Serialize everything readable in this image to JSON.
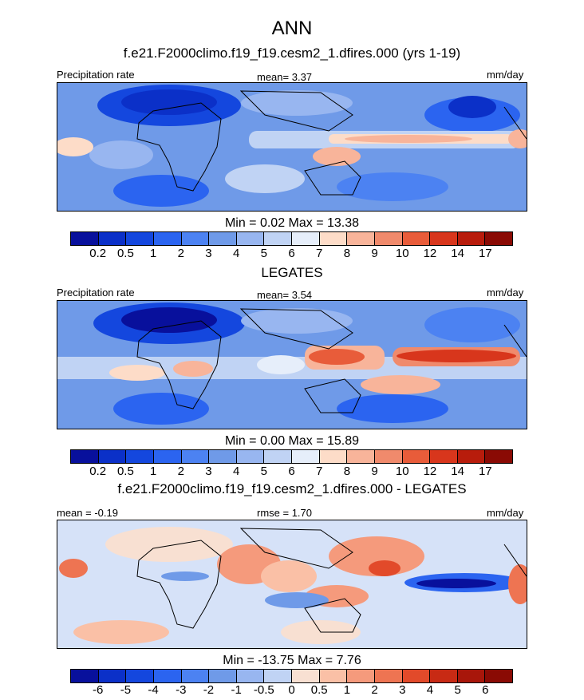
{
  "figure": {
    "title": "ANN",
    "case_title": "f.e21.F2000climo.f19_f19.cesm2_1.dfires.000 (yrs 1-19)",
    "obs_title": "LEGATES",
    "diff_title": "f.e21.F2000climo.f19_f19.cesm2_1.dfires.000 - LEGATES"
  },
  "panels": [
    {
      "left_label": "Precipitation rate",
      "center_label": "mean=   3.37",
      "right_label": "mm/day",
      "minmax": "Min =   0.02 Max =  13.38",
      "colorbar": "abs"
    },
    {
      "left_label": "Precipitation rate",
      "center_label": "mean=   3.54",
      "right_label": "mm/day",
      "minmax": "Min =   0.00 Max =  15.89",
      "colorbar": "abs"
    },
    {
      "left_label": "mean =  -0.19",
      "center_label": "rmse =   1.70",
      "right_label": "mm/day",
      "minmax": "Min = -13.75 Max =   7.76",
      "colorbar": "diff"
    }
  ],
  "colorbars": {
    "abs": {
      "levels": [
        "0.2",
        "0.5",
        "1",
        "2",
        "3",
        "4",
        "5",
        "6",
        "7",
        "8",
        "9",
        "10",
        "12",
        "14",
        "17"
      ],
      "colors": [
        "#08109c",
        "#0b30c8",
        "#1447de",
        "#2b64f0",
        "#4c82f2",
        "#6f9ae8",
        "#98b6f0",
        "#c0d3f4",
        "#e6eefa",
        "#fddcc8",
        "#f8b49a",
        "#f08a6c",
        "#e85c3a",
        "#d8361c",
        "#b81c0c",
        "#8a0a04"
      ]
    },
    "diff": {
      "levels": [
        "-6",
        "-5",
        "-4",
        "-3",
        "-2",
        "-1",
        "-0.5",
        "0",
        "0.5",
        "1",
        "2",
        "3",
        "4",
        "5",
        "6"
      ],
      "colors": [
        "#08109c",
        "#0b30c8",
        "#1447de",
        "#2b64f0",
        "#4c82f2",
        "#6f9ae8",
        "#98b6f0",
        "#c0d3f4",
        "#f8e0d2",
        "#fac0a6",
        "#f59a7c",
        "#ee7452",
        "#e24a2a",
        "#c82a14",
        "#a8160a",
        "#8a0a04"
      ]
    }
  }
}
